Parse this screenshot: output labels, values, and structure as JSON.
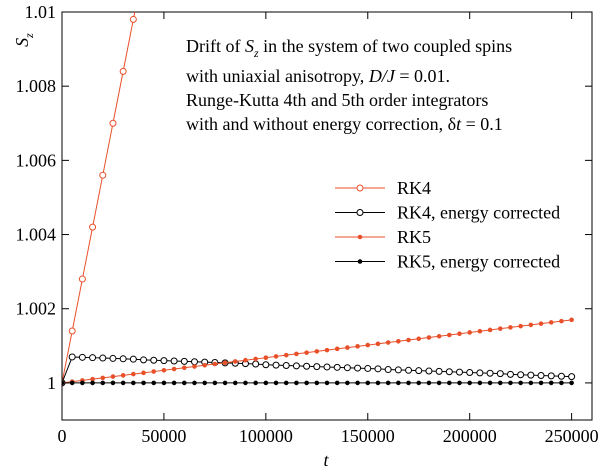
{
  "chart_data": {
    "type": "line",
    "annotation": {
      "lines": [
        [
          "Drift of ",
          "S",
          "z",
          " in the system of two coupled spins"
        ],
        [
          "with uniaxial anisotropy, ",
          "D/J",
          " = 0.01."
        ],
        [
          "Runge-Kutta 4th and 5th order integrators"
        ],
        [
          "with and without energy correction, ",
          "δ",
          "t",
          " = 0.1"
        ]
      ]
    },
    "xlabel": "t",
    "ylabel": [
      "S",
      "z"
    ],
    "xlim": [
      0,
      260000
    ],
    "ylim": [
      0.999,
      1.01
    ],
    "xticks": [
      0,
      50000,
      100000,
      150000,
      200000,
      250000
    ],
    "yticks": [
      1,
      1.002,
      1.004,
      1.006,
      1.008,
      1.01
    ],
    "legend": "right",
    "x": [
      0,
      5000,
      10000,
      15000,
      20000,
      25000,
      30000,
      35000,
      40000,
      45000,
      50000,
      55000,
      60000,
      65000,
      70000,
      75000,
      80000,
      85000,
      90000,
      95000,
      100000,
      105000,
      110000,
      115000,
      120000,
      125000,
      130000,
      135000,
      140000,
      145000,
      150000,
      155000,
      160000,
      165000,
      170000,
      175000,
      180000,
      185000,
      190000,
      195000,
      200000,
      205000,
      210000,
      215000,
      220000,
      225000,
      230000,
      235000,
      240000,
      245000,
      250000
    ],
    "series": [
      {
        "name": "RK4",
        "color": "#e8502a",
        "marker": "open",
        "values": [
          1,
          1.0014,
          1.0028,
          1.0042,
          1.0056,
          1.007,
          1.0084,
          1.0098,
          1.0112,
          null,
          null,
          null,
          null,
          null,
          null,
          null,
          null,
          null,
          null,
          null,
          null,
          null,
          null,
          null,
          null,
          null,
          null,
          null,
          null,
          null,
          null,
          null,
          null,
          null,
          null,
          null,
          null,
          null,
          null,
          null,
          null,
          null,
          null,
          null,
          null,
          null,
          null,
          null,
          null,
          null,
          null
        ]
      },
      {
        "name": "RK4,  energy corrected",
        "color": "#000000",
        "marker": "open",
        "values": [
          1,
          1.0007,
          1.00069,
          1.00068,
          1.00067,
          1.00066,
          1.00065,
          1.00064,
          1.00062,
          1.00061,
          1.0006,
          1.00059,
          1.00058,
          1.00057,
          1.00056,
          1.00055,
          1.00054,
          1.00053,
          1.00052,
          1.00051,
          1.00049,
          1.00048,
          1.00047,
          1.00046,
          1.00045,
          1.00044,
          1.00043,
          1.00042,
          1.00041,
          1.0004,
          1.00039,
          1.00038,
          1.00036,
          1.00035,
          1.00034,
          1.00033,
          1.00032,
          1.00031,
          1.0003,
          1.00029,
          1.00028,
          1.00027,
          1.00026,
          1.00025,
          1.00023,
          1.00022,
          1.00021,
          1.0002,
          1.00019,
          1.00018,
          1.00017
        ]
      },
      {
        "name": "RK5",
        "color": "#e8502a",
        "marker": "filled",
        "values": [
          1,
          1.000034,
          1.000068,
          1.000102,
          1.000136,
          1.00017,
          1.000204,
          1.000238,
          1.000272,
          1.000306,
          1.00034,
          1.000374,
          1.000408,
          1.000442,
          1.000476,
          1.00051,
          1.000544,
          1.000578,
          1.000612,
          1.000646,
          1.00068,
          1.000714,
          1.000748,
          1.000782,
          1.000816,
          1.00085,
          1.000884,
          1.000918,
          1.000952,
          1.000986,
          1.00102,
          1.001054,
          1.001088,
          1.001122,
          1.001156,
          1.00119,
          1.001224,
          1.001258,
          1.001292,
          1.001326,
          1.00136,
          1.001394,
          1.001428,
          1.001462,
          1.001496,
          1.00153,
          1.001564,
          1.001598,
          1.001632,
          1.001666,
          1.0017
        ]
      },
      {
        "name": "RK5,  energy corrected",
        "color": "#000000",
        "marker": "filled",
        "values": [
          1,
          1,
          1,
          1,
          1,
          1,
          1,
          1,
          1,
          1,
          1,
          1,
          1,
          1,
          1,
          1,
          1,
          1,
          1,
          1,
          1,
          1,
          1,
          1,
          1,
          1,
          1,
          1,
          1,
          1,
          1,
          1,
          1,
          1,
          1,
          1,
          1,
          1,
          1,
          1,
          1,
          1,
          1,
          1,
          1,
          1,
          1,
          1,
          1,
          1,
          1
        ]
      }
    ]
  }
}
